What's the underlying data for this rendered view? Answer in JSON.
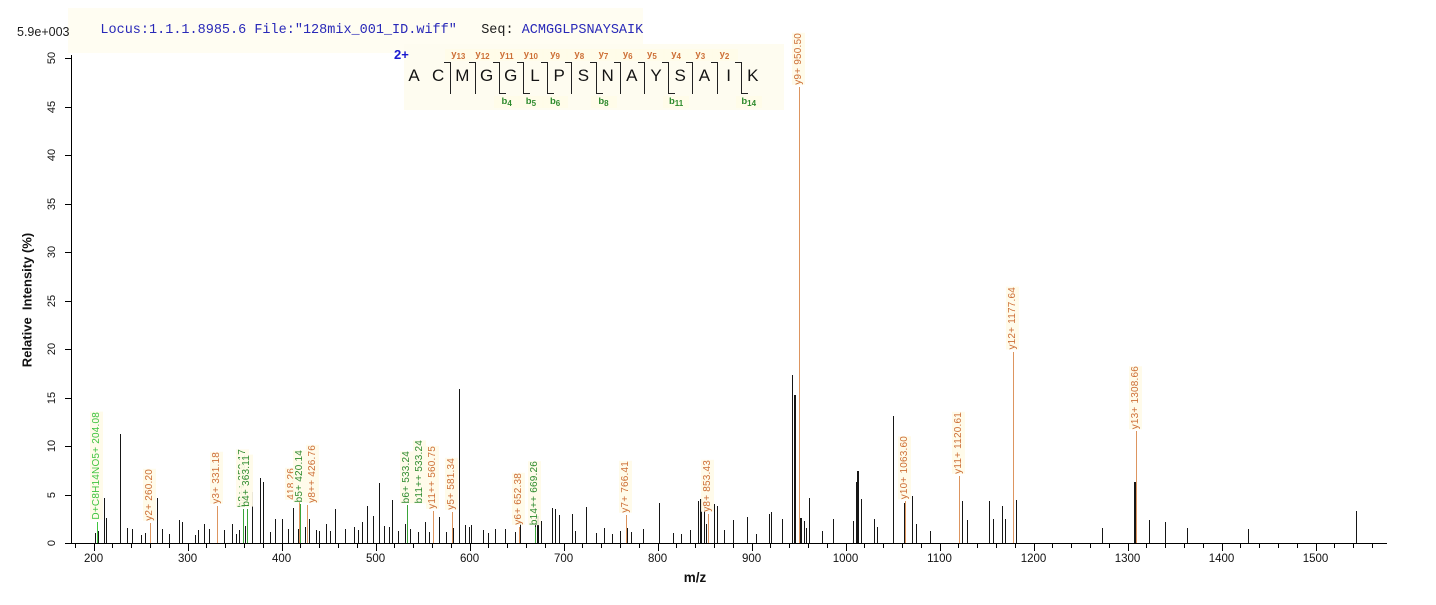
{
  "header": {
    "locus_file": "Locus:1.1.1.8985.6 File:\"128mix_001_ID.wiff\"",
    "seq_label": "Seq:",
    "sequence": "ACMGGLPSNAYSAIK",
    "max_intensity": "5.9e+003"
  },
  "colors": {
    "header_blue": "#2929b8",
    "charge_blue": "#1a1ad0",
    "y_ion_text": "#cd6f36",
    "y_ion_line": "#dd9560",
    "b_ion_text": "#2e8b2e",
    "b_ion_line": "#3aa43a",
    "special_ion": "#3fc43f",
    "peak_black": "#161616",
    "axis_black": "#000000"
  },
  "ladder": {
    "charge": "2+",
    "residues": [
      "A",
      "C",
      "M",
      "G",
      "G",
      "L",
      "P",
      "S",
      "N",
      "A",
      "Y",
      "S",
      "A",
      "I",
      "K"
    ],
    "cuts": [
      {
        "after": 2,
        "y": "y13"
      },
      {
        "after": 3,
        "y": "y12"
      },
      {
        "after": 4,
        "y": "y11",
        "b": "b4"
      },
      {
        "after": 5,
        "y": "y10",
        "b": "b5"
      },
      {
        "after": 6,
        "y": "y9",
        "b": "b6"
      },
      {
        "after": 7,
        "y": "y8"
      },
      {
        "after": 8,
        "y": "y7",
        "b": "b8"
      },
      {
        "after": 9,
        "y": "y6"
      },
      {
        "after": 10,
        "y": "y5"
      },
      {
        "after": 11,
        "y": "y4",
        "b": "b11"
      },
      {
        "after": 12,
        "y": "y3"
      },
      {
        "after": 13,
        "y": "y2"
      },
      {
        "after": 14,
        "b": "b14"
      }
    ]
  },
  "chart_data": {
    "type": "bar",
    "subtype": "ms2-centroid-mass-spectrum",
    "xlabel": "m/z",
    "ylabel": "Relative  Intensity (%)",
    "xlim": [
      176,
      1576
    ],
    "ylim": [
      0,
      50
    ],
    "x_major_ticks": [
      200,
      300,
      400,
      500,
      600,
      700,
      800,
      900,
      1000,
      1100,
      1200,
      1300,
      1400,
      1500
    ],
    "x_minor_step": 20,
    "y_ticks": [
      0,
      5,
      10,
      15,
      20,
      25,
      30,
      35,
      40,
      45,
      50
    ],
    "grid": false,
    "absolute_max_intensity": "5.9e+003",
    "annotated_peaks": [
      {
        "mz": 204.08,
        "pct": 2.2,
        "label": "D+C8H14NO5+ 204.08",
        "ion": "special"
      },
      {
        "mz": 260.2,
        "pct": 2.1,
        "label": "y2+ 260.20",
        "ion": "y"
      },
      {
        "mz": 331.18,
        "pct": 3.8,
        "label": "y3+ 331.18",
        "ion": "y"
      },
      {
        "mz": 359.17,
        "pct": 3.5,
        "label": "b8++ 359.17",
        "ion": "b"
      },
      {
        "mz": 363.11,
        "pct": 3.5,
        "label": "b4+ 363.11",
        "ion": "b"
      },
      {
        "mz": 418.26,
        "pct": 4.2,
        "label": "418.26",
        "ion": "y",
        "dx": -7
      },
      {
        "mz": 420.14,
        "pct": 4.0,
        "label": "b5+ 420.14",
        "ion": "b"
      },
      {
        "mz": 426.76,
        "pct": 3.9,
        "label": "y8++ 426.76",
        "ion": "y",
        "dx": 6
      },
      {
        "mz": 533.24,
        "pct": 3.9,
        "label": "b6+ 533.24",
        "ion": "b"
      },
      {
        "mz": 533.24,
        "pct": 3.9,
        "label": "b11++ 533.24",
        "ion": "b",
        "dx": 13
      },
      {
        "mz": 560.75,
        "pct": 3.3,
        "label": "y11++ 560.75",
        "ion": "y"
      },
      {
        "mz": 581.34,
        "pct": 3.2,
        "label": "y5+ 581.34",
        "ion": "y"
      },
      {
        "mz": 652.38,
        "pct": 1.7,
        "label": "y6+ 652.38",
        "ion": "y"
      },
      {
        "mz": 669.26,
        "pct": 1.6,
        "label": "b14++ 669.26",
        "ion": "b"
      },
      {
        "mz": 766.41,
        "pct": 2.9,
        "label": "y7+ 766.41",
        "ion": "y"
      },
      {
        "mz": 853.43,
        "pct": 3.0,
        "label": "y8+ 853.43",
        "ion": "y"
      },
      {
        "mz": 950.5,
        "pct": 47.0,
        "label": "y9+ 950.50",
        "ion": "y"
      },
      {
        "mz": 1063.6,
        "pct": 4.3,
        "label": "y10+ 1063.60",
        "ion": "y"
      },
      {
        "mz": 1120.61,
        "pct": 6.9,
        "label": "y11+ 1120.61",
        "ion": "y"
      },
      {
        "mz": 1177.64,
        "pct": 19.7,
        "label": "y12+ 1177.64",
        "ion": "y"
      },
      {
        "mz": 1308.66,
        "pct": 11.5,
        "label": "y13+ 1308.66",
        "ion": "y"
      }
    ],
    "peaks": [
      [
        202,
        1.0
      ],
      [
        205,
        1.2
      ],
      [
        211,
        4.6
      ],
      [
        213,
        2.6
      ],
      [
        228,
        11.2
      ],
      [
        236,
        1.5
      ],
      [
        241,
        1.4
      ],
      [
        250,
        0.8
      ],
      [
        255,
        1.0
      ],
      [
        260,
        1.1
      ],
      [
        268,
        4.6
      ],
      [
        273,
        1.4
      ],
      [
        280,
        0.9
      ],
      [
        291,
        2.4
      ],
      [
        294,
        2.2
      ],
      [
        308,
        0.8
      ],
      [
        311,
        1.3
      ],
      [
        318,
        2.0
      ],
      [
        323,
        1.4
      ],
      [
        331,
        1.5
      ],
      [
        339,
        1.3
      ],
      [
        347,
        2.0
      ],
      [
        352,
        0.9
      ],
      [
        355,
        1.3
      ],
      [
        361,
        1.8
      ],
      [
        363,
        2.2
      ],
      [
        369,
        5.3
      ],
      [
        377,
        6.7
      ],
      [
        380,
        6.3
      ],
      [
        388,
        1.1
      ],
      [
        393,
        2.5
      ],
      [
        400,
        2.5
      ],
      [
        407,
        1.4
      ],
      [
        412,
        3.6
      ],
      [
        417,
        1.4
      ],
      [
        425,
        1.6
      ],
      [
        429,
        2.5
      ],
      [
        437,
        1.3
      ],
      [
        440,
        1.2
      ],
      [
        447,
        2.0
      ],
      [
        452,
        1.2
      ],
      [
        457,
        3.5
      ],
      [
        468,
        1.4
      ],
      [
        477,
        1.7
      ],
      [
        481,
        1.3
      ],
      [
        486,
        2.2
      ],
      [
        491,
        3.8
      ],
      [
        497,
        2.8
      ],
      [
        504,
        6.2
      ],
      [
        509,
        1.8
      ],
      [
        514,
        1.6
      ],
      [
        518,
        4.4
      ],
      [
        524,
        1.2
      ],
      [
        531,
        2.0
      ],
      [
        537,
        1.4
      ],
      [
        545,
        1.1
      ],
      [
        553,
        2.2
      ],
      [
        557,
        1.1
      ],
      [
        561,
        1.4
      ],
      [
        568,
        2.7
      ],
      [
        575,
        1.1
      ],
      [
        582,
        1.5
      ],
      [
        589,
        15.9
      ],
      [
        595,
        1.9
      ],
      [
        599,
        1.6
      ],
      [
        602,
        1.9
      ],
      [
        614,
        1.3
      ],
      [
        620,
        1.0
      ],
      [
        627,
        1.4
      ],
      [
        638,
        1.4
      ],
      [
        648,
        1.1
      ],
      [
        654,
        2.2
      ],
      [
        670,
        2.6
      ],
      [
        673,
        2.8,
        2
      ],
      [
        676,
        2.3
      ],
      [
        688,
        3.6
      ],
      [
        691,
        3.5
      ],
      [
        695,
        2.9
      ],
      [
        709,
        3.0
      ],
      [
        712,
        1.2
      ],
      [
        724,
        3.7
      ],
      [
        734,
        1.0
      ],
      [
        743,
        1.5
      ],
      [
        752,
        0.9
      ],
      [
        760,
        1.2
      ],
      [
        768,
        1.5
      ],
      [
        772,
        1.1
      ],
      [
        784,
        1.4
      ],
      [
        802,
        4.1
      ],
      [
        816,
        1.0
      ],
      [
        825,
        0.9
      ],
      [
        834,
        1.3
      ],
      [
        843,
        4.3
      ],
      [
        846,
        4.5,
        2
      ],
      [
        849,
        4.2
      ],
      [
        852,
        2.0
      ],
      [
        860,
        4.0
      ],
      [
        863,
        3.8
      ],
      [
        871,
        1.3
      ],
      [
        880,
        2.4
      ],
      [
        895,
        2.7
      ],
      [
        905,
        0.9
      ],
      [
        919,
        3.0
      ],
      [
        921,
        3.2
      ],
      [
        932,
        2.5
      ],
      [
        943,
        17.3
      ],
      [
        946,
        15.3,
        2
      ],
      [
        951,
        2.6,
        3
      ],
      [
        956,
        2.3
      ],
      [
        958,
        1.5
      ],
      [
        961,
        4.6
      ],
      [
        975,
        1.2
      ],
      [
        987,
        2.5
      ],
      [
        1008,
        2.3
      ],
      [
        1011,
        6.3
      ],
      [
        1013,
        7.4,
        2
      ],
      [
        1016,
        4.5
      ],
      [
        1030,
        2.5
      ],
      [
        1033,
        1.7
      ],
      [
        1050,
        13.1
      ],
      [
        1062,
        4.1
      ],
      [
        1071,
        4.8
      ],
      [
        1075,
        2.0
      ],
      [
        1090,
        1.2
      ],
      [
        1124,
        4.3
      ],
      [
        1129,
        2.4
      ],
      [
        1153,
        4.3
      ],
      [
        1157,
        2.5
      ],
      [
        1166,
        3.8
      ],
      [
        1170,
        2.5
      ],
      [
        1181,
        4.4
      ],
      [
        1273,
        1.5
      ],
      [
        1308,
        6.3,
        2
      ],
      [
        1323,
        2.4
      ],
      [
        1340,
        2.2
      ],
      [
        1363,
        1.5
      ],
      [
        1428,
        1.4
      ],
      [
        1543,
        3.3
      ]
    ]
  }
}
